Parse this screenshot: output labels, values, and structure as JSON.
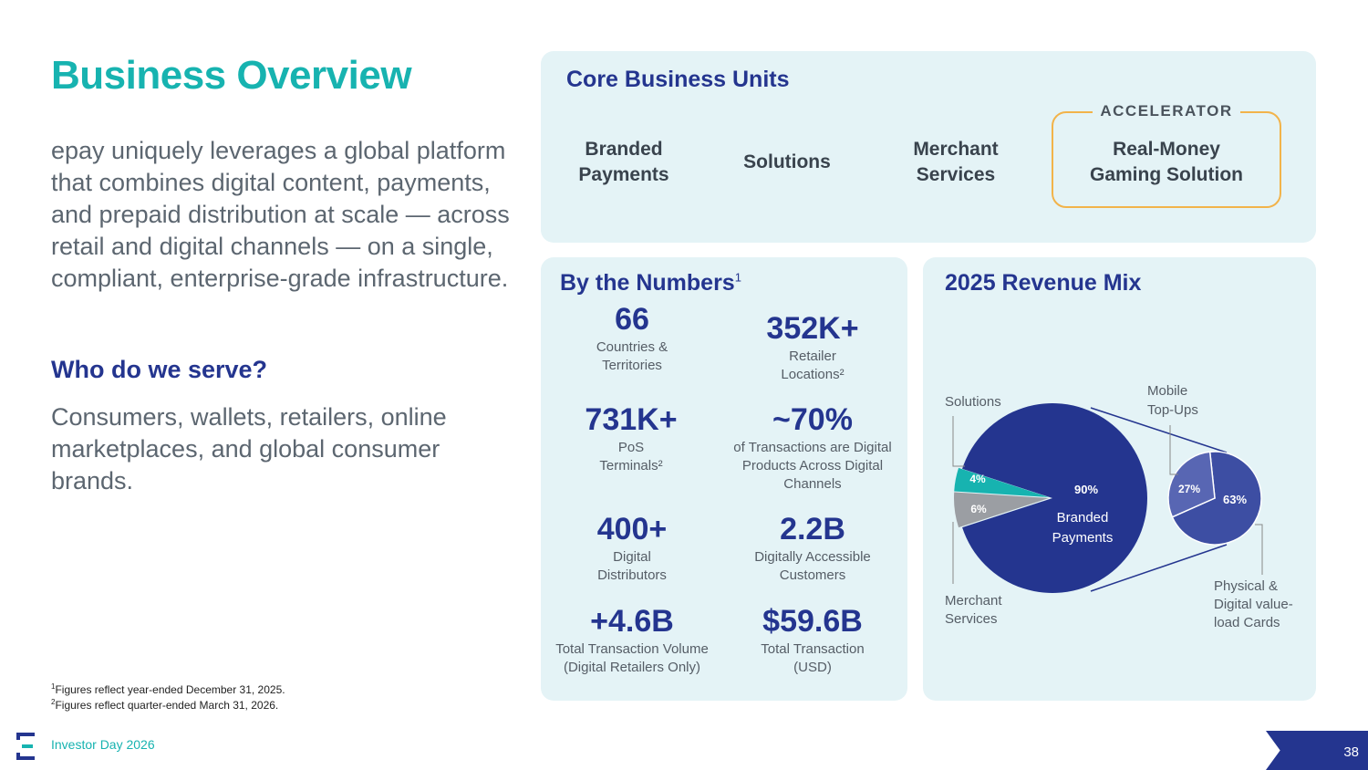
{
  "slide": {
    "title": "Business Overview",
    "intro": "epay uniquely leverages a global platform that combines digital content, payments, and prepaid distribution at scale — across retail and digital channels — on a single, compliant, enterprise-grade infrastructure.",
    "serve_heading": "Who do we serve?",
    "serve_text": "Consumers, wallets, retailers, online marketplaces, and global consumer brands.",
    "footnotes": [
      {
        "num": "1",
        "text": "Figures reflect year-ended December 31, 2025."
      },
      {
        "num": "2",
        "text": "Figures reflect quarter-ended March 31, 2026."
      }
    ]
  },
  "core_units": {
    "title": "Core Business Units",
    "units": [
      "Branded Payments",
      "Solutions",
      "Merchant Services",
      "Real-Money Gaming Solution"
    ],
    "accelerator_label": "ACCELERATOR"
  },
  "numbers": {
    "title": "By the Numbers",
    "title_sup": "1",
    "stats": [
      {
        "value": "66",
        "label": "Countries & Territories"
      },
      {
        "value": "352K+",
        "label": "Retailer Locations²"
      },
      {
        "value": "731K+",
        "label": "PoS Terminals²"
      },
      {
        "value": "~70%",
        "label": "of Transactions are Digital Products Across Digital Channels"
      },
      {
        "value": "400+",
        "label": "Digital Distributors"
      },
      {
        "value": "2.2B",
        "label": "Digitally Accessible Customers"
      },
      {
        "value": "+4.6B",
        "label": "Total Transaction Volume (Digital Retailers Only)"
      },
      {
        "value": "$59.6B",
        "label": "Total Transaction (USD)"
      }
    ]
  },
  "revenue_mix": {
    "title": "2025 Revenue Mix",
    "colors": {
      "branded": "#24358f",
      "solutions": "#17b3b0",
      "merchant": "#9b9ea3",
      "mobile": "#5866b3",
      "physical": "#3d4ea3",
      "accent": "#17b3b0"
    }
  },
  "chart_data": {
    "type": "pie",
    "title": "2025 Revenue Mix",
    "slices": [
      {
        "label": "Branded Payments",
        "value": 90,
        "display": "90%"
      },
      {
        "label": "Solutions",
        "value": 4,
        "display": "4%"
      },
      {
        "label": "Merchant Services",
        "value": 6,
        "display": "6%"
      }
    ],
    "breakdown": {
      "of": "Branded Payments",
      "slices": [
        {
          "label": "Mobile Top-Ups",
          "value": 27,
          "display": "27%"
        },
        {
          "label": "Physical & Digital value-load Cards",
          "value": 63,
          "display": "63%"
        }
      ]
    }
  },
  "footer": {
    "event": "Investor Day 2026",
    "page": "38"
  }
}
